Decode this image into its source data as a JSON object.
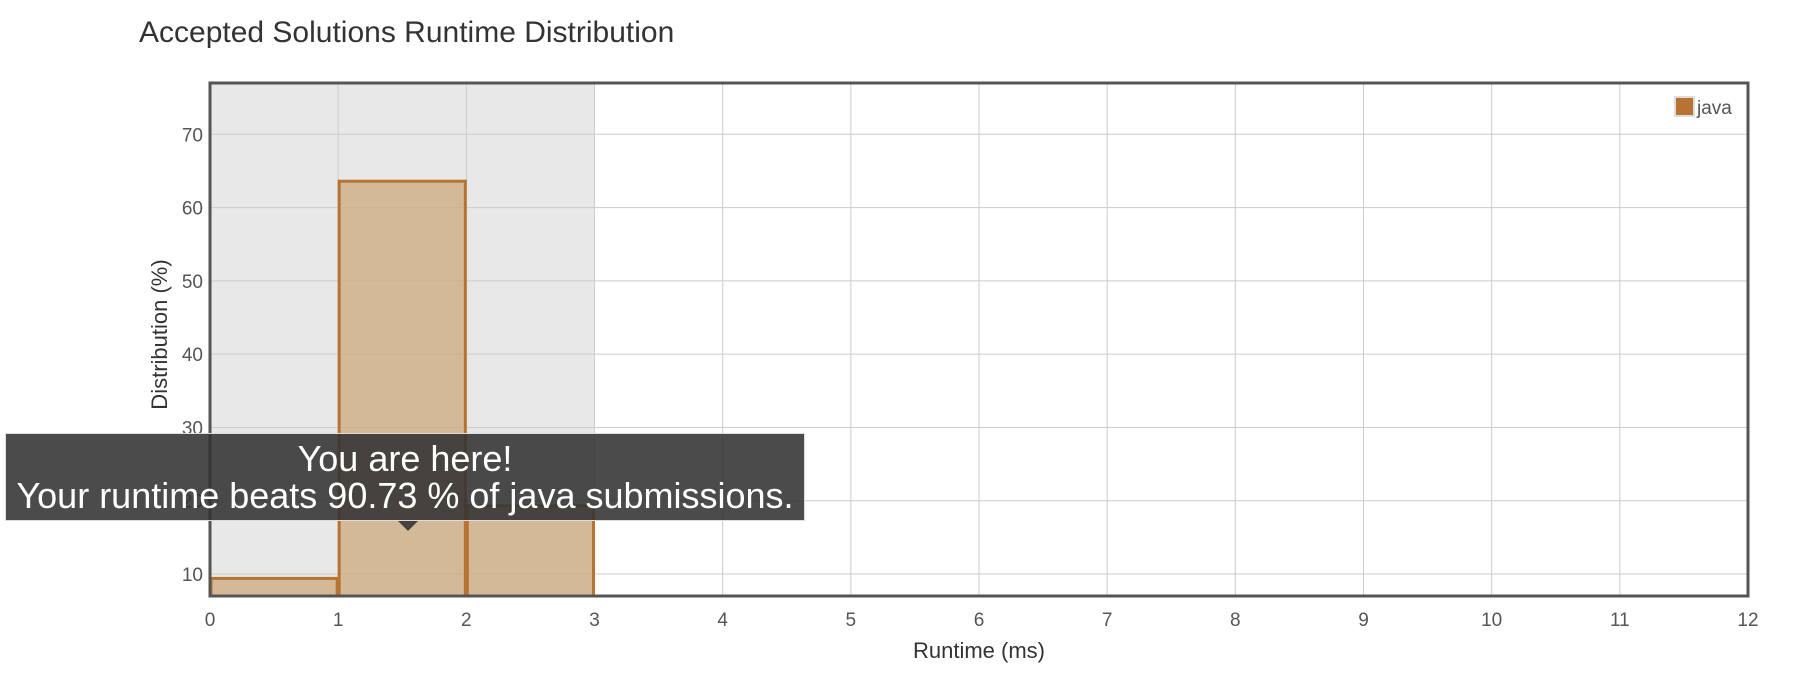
{
  "chart_data": {
    "type": "bar",
    "title": "Accepted Solutions Runtime Distribution",
    "xlabel": "Runtime (ms)",
    "ylabel": "Distribution (%)",
    "xlim": [
      0,
      12
    ],
    "ylim": [
      7,
      77
    ],
    "xticks": [
      "0",
      "1",
      "2",
      "3",
      "4",
      "5",
      "6",
      "7",
      "8",
      "9",
      "10",
      "11",
      "12"
    ],
    "yticks": [
      "10",
      "20",
      "30",
      "40",
      "50",
      "60",
      "70"
    ],
    "grid": true,
    "legend": {
      "position": "top-right",
      "entries": [
        "java"
      ]
    },
    "series": [
      {
        "name": "java",
        "color": "#b87333",
        "bins": [
          {
            "x0": 0,
            "x1": 1,
            "value": 9.4
          },
          {
            "x0": 1,
            "x1": 2,
            "value": 63.6
          },
          {
            "x0": 2,
            "x1": 3,
            "value": 19.3
          }
        ]
      }
    ],
    "highlight_range": [
      0,
      3
    ],
    "tooltip": {
      "line1": "You are here!",
      "line2": "Your runtime beats 90.73 % of java submissions."
    }
  }
}
